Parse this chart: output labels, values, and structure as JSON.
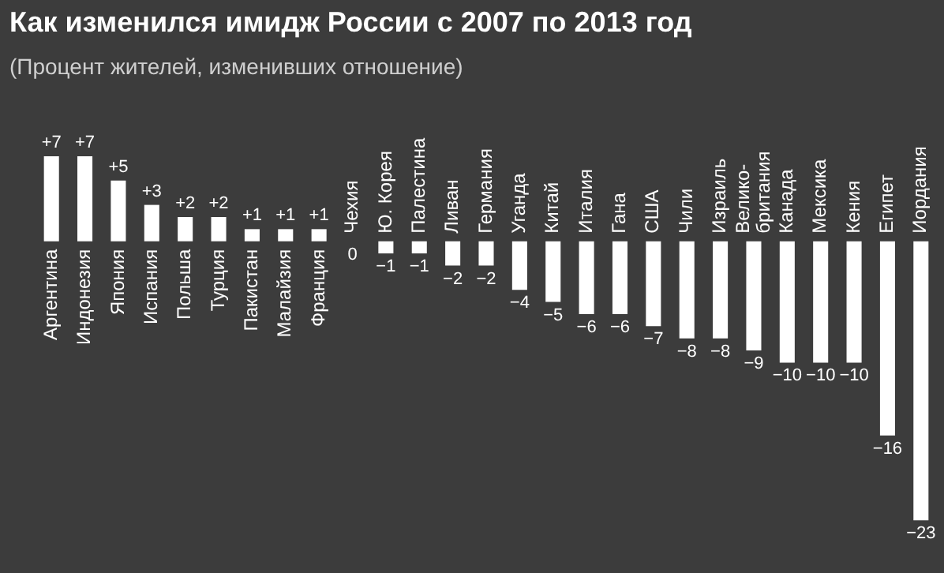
{
  "chart_data": {
    "type": "bar",
    "title": "Как изменился имидж России с 2007 по 2013 год",
    "subtitle": "(Процент жителей, изменивших отношение)",
    "categories": [
      "Аргентина",
      "Индонезия",
      "Япония",
      "Испания",
      "Польша",
      "Турция",
      "Пакистан",
      "Малайзия",
      "Франция",
      "Чехия",
      "Ю. Корея",
      "Палестина",
      "Ливан",
      "Германия",
      "Уганда",
      "Китай",
      "Италия",
      "Гана",
      "США",
      "Чили",
      "Израиль",
      "Велико-британия",
      "Канада",
      "Мексика",
      "Кения",
      "Египет",
      "Иордания"
    ],
    "values": [
      7,
      7,
      5,
      3,
      2,
      2,
      1,
      1,
      1,
      0,
      -1,
      -1,
      -2,
      -2,
      -4,
      -5,
      -6,
      -6,
      -7,
      -8,
      -8,
      -9,
      -10,
      -10,
      -10,
      -16,
      -23
    ],
    "value_labels": [
      "+7",
      "+7",
      "+5",
      "+3",
      "+2",
      "+2",
      "+1",
      "+1",
      "+1",
      "0",
      "−1",
      "−1",
      "−2",
      "−2",
      "−4",
      "−5",
      "−6",
      "−6",
      "−7",
      "−8",
      "−8",
      "−9",
      "−10",
      "−10",
      "−10",
      "−16",
      "−23"
    ],
    "color": "#ffffff"
  }
}
